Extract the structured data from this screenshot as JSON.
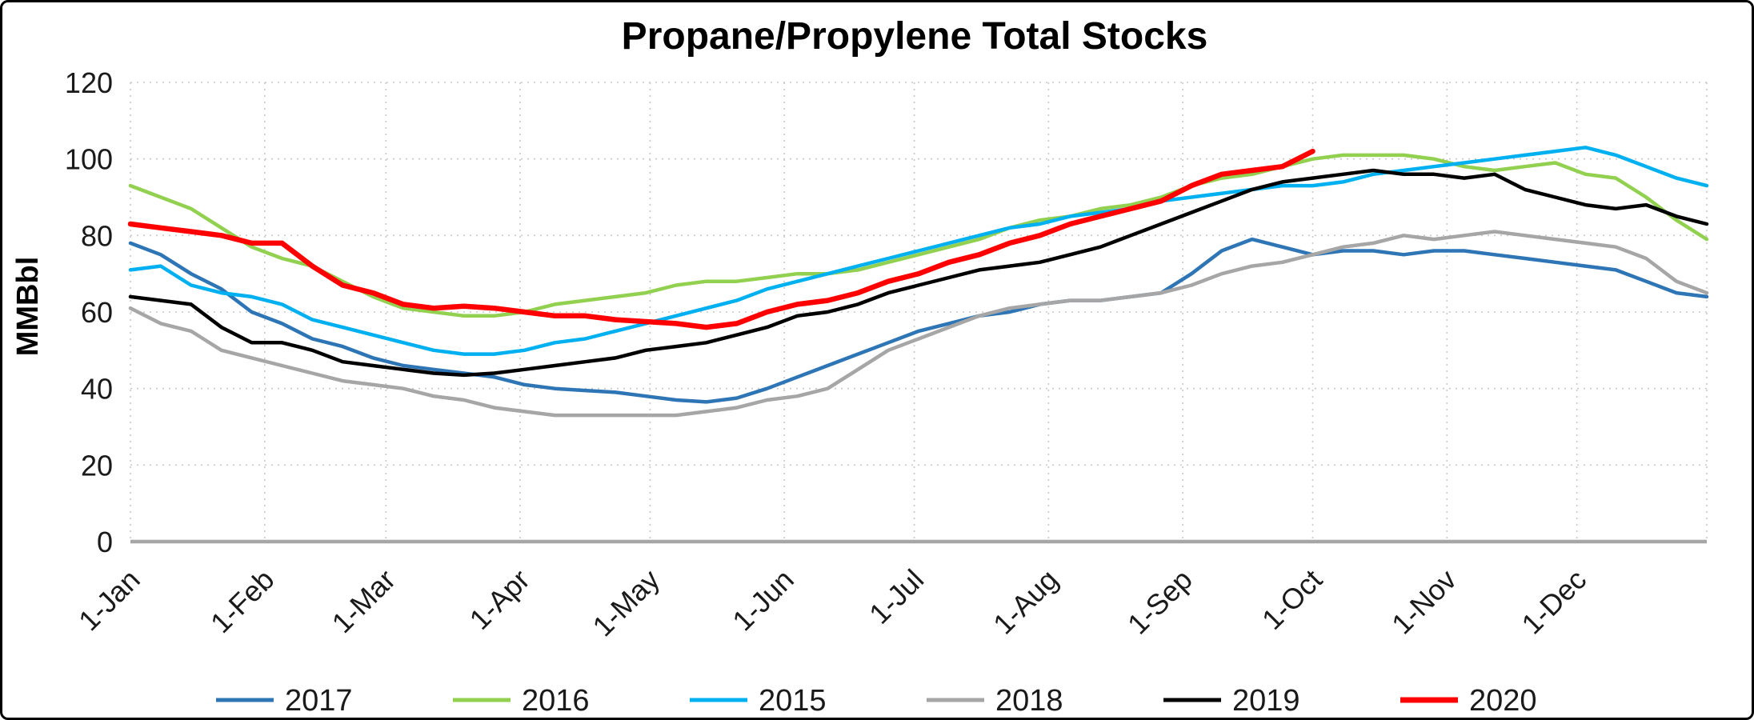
{
  "chart_data": {
    "type": "line",
    "title": "Propane/Propylene Total Stocks",
    "ylabel": "MMBbl",
    "ylim": [
      0,
      120
    ],
    "yticks": [
      0,
      20,
      40,
      60,
      80,
      100,
      120
    ],
    "grid": "dotted",
    "legend_position": "bottom",
    "axis_color": "#a6a6a6",
    "grid_color": "#c9c9c9",
    "text_color": "#1a1a1a",
    "xticks": {
      "labels": [
        "1-Jan",
        "1-Feb",
        "1-Mar",
        "1-Apr",
        "1-May",
        "1-Jun",
        "1-Jul",
        "1-Aug",
        "1-Sep",
        "1-Oct",
        "1-Nov",
        "1-Dec"
      ],
      "day_of_year": [
        1,
        32,
        60,
        91,
        121,
        152,
        182,
        213,
        244,
        274,
        305,
        335
      ]
    },
    "x_unit": "weekly",
    "series": [
      {
        "name": "2017",
        "color": "#2E75B6",
        "stroke_width": 4.5,
        "values": [
          78,
          75,
          70,
          66,
          60,
          57,
          53,
          51,
          48,
          46,
          45,
          44,
          43,
          41,
          40,
          39.5,
          39,
          38,
          37,
          36.5,
          37.5,
          40,
          43,
          46,
          49,
          52,
          55,
          57,
          59,
          60,
          62,
          63,
          63,
          64,
          65,
          70,
          76,
          79,
          77,
          75,
          76,
          76,
          75,
          76,
          76,
          75,
          74,
          73,
          72,
          71,
          68,
          65,
          64
        ]
      },
      {
        "name": "2016",
        "color": "#92D050",
        "stroke_width": 4.5,
        "values": [
          93,
          90,
          87,
          82,
          77,
          74,
          72,
          68,
          64,
          61,
          60,
          59,
          59,
          60,
          62,
          63,
          64,
          65,
          67,
          68,
          68,
          69,
          70,
          70,
          71,
          73,
          75,
          77,
          79,
          82,
          84,
          85,
          87,
          88,
          90,
          93,
          95,
          96,
          98,
          100,
          101,
          101,
          101,
          100,
          98,
          97,
          98,
          99,
          96,
          95,
          90,
          84,
          79
        ]
      },
      {
        "name": "2015",
        "color": "#00B0F0",
        "stroke_width": 4.5,
        "values": [
          71,
          72,
          67,
          65,
          64,
          62,
          58,
          56,
          54,
          52,
          50,
          49,
          49,
          50,
          52,
          53,
          55,
          57,
          59,
          61,
          63,
          66,
          68,
          70,
          72,
          74,
          76,
          78,
          80,
          82,
          83,
          85,
          86,
          87,
          89,
          90,
          91,
          92,
          93,
          93,
          94,
          96,
          97,
          98,
          99,
          100,
          101,
          102,
          103,
          101,
          98,
          95,
          93
        ]
      },
      {
        "name": "2018",
        "color": "#A6A6A6",
        "stroke_width": 4.5,
        "values": [
          61,
          57,
          55,
          50,
          48,
          46,
          44,
          42,
          41,
          40,
          38,
          37,
          35,
          34,
          33,
          33,
          33,
          33,
          33,
          34,
          35,
          37,
          38,
          40,
          45,
          50,
          53,
          56,
          59,
          61,
          62,
          63,
          63,
          64,
          65,
          67,
          70,
          72,
          73,
          75,
          77,
          78,
          80,
          79,
          80,
          81,
          80,
          79,
          78,
          77,
          74,
          68,
          65
        ]
      },
      {
        "name": "2019",
        "color": "#000000",
        "stroke_width": 4.5,
        "values": [
          64,
          63,
          62,
          56,
          52,
          52,
          50,
          47,
          46,
          45,
          44,
          43.5,
          44,
          45,
          46,
          47,
          48,
          50,
          51,
          52,
          54,
          56,
          59,
          60,
          62,
          65,
          67,
          69,
          71,
          72,
          73,
          75,
          77,
          80,
          83,
          86,
          89,
          92,
          94,
          95,
          96,
          97,
          96,
          96,
          95,
          96,
          92,
          90,
          88,
          87,
          88,
          85,
          83
        ]
      },
      {
        "name": "2020",
        "color": "#FF0000",
        "stroke_width": 6.5,
        "values": [
          83,
          82,
          81,
          80,
          78,
          78,
          72,
          67,
          65,
          62,
          61,
          61.5,
          61,
          60,
          59,
          59,
          58,
          57.5,
          57,
          56,
          57,
          60,
          62,
          63,
          65,
          68,
          70,
          73,
          75,
          78,
          80,
          83,
          85,
          87,
          89,
          93,
          96,
          97,
          98,
          102
        ]
      }
    ]
  }
}
